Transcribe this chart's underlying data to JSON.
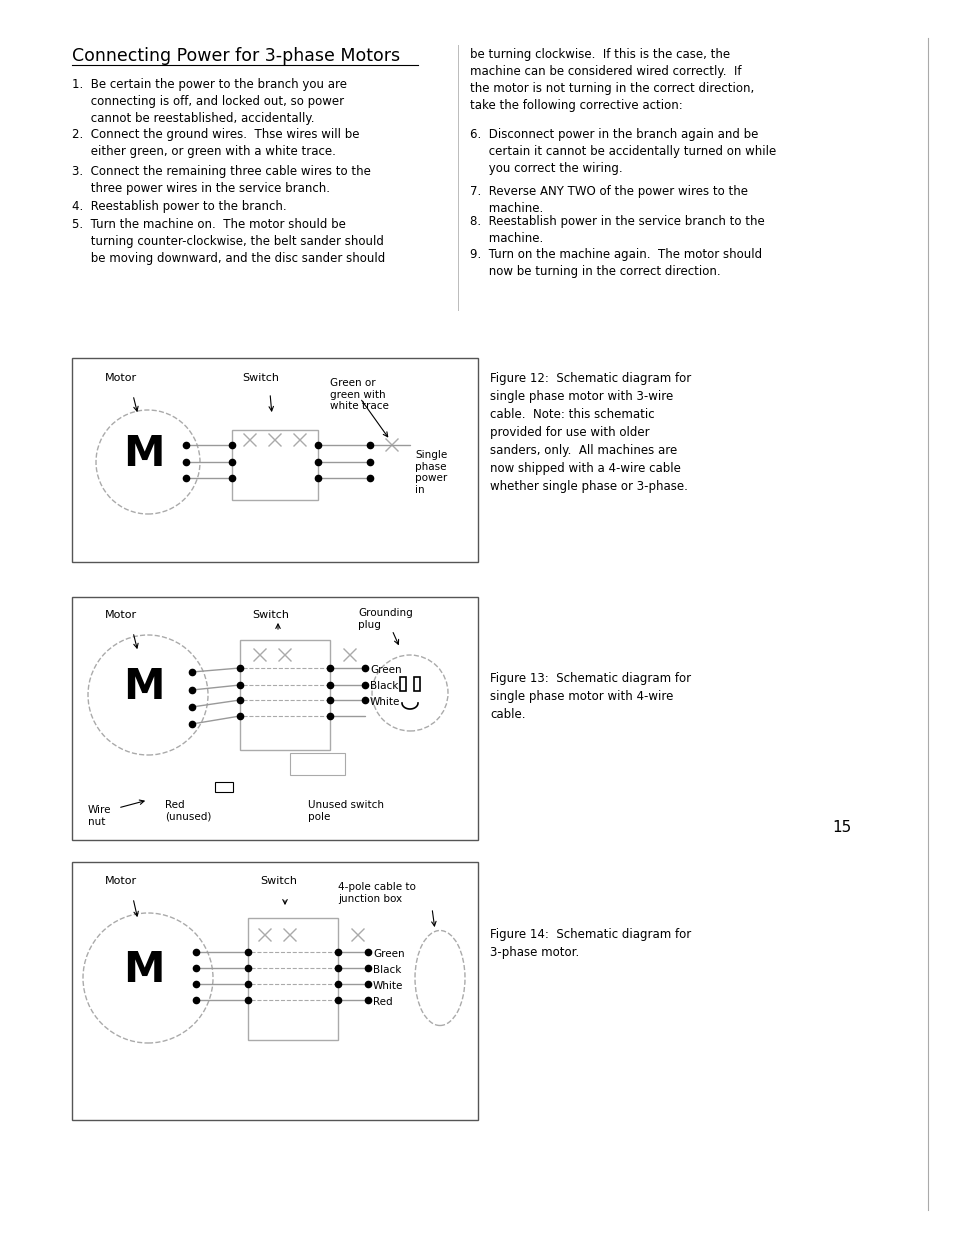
{
  "title": "Connecting Power for 3-phase Motors",
  "bg_color": "#ffffff",
  "page_number": "15",
  "fig12_caption": "Figure 12:  Schematic diagram for\nsingle phase motor with 3-wire\ncable.  Note: this schematic\nprovided for use with older\nsanders, only.  All machines are\nnow shipped with a 4-wire cable\nwhether single phase or 3-phase.",
  "fig13_caption": "Figure 13:  Schematic diagram for\nsingle phase motor with 4-wire\ncable.",
  "fig14_caption": "Figure 14:  Schematic diagram for\n3-phase motor.",
  "left_text": "1.  Be certain the power to the branch you are\n    connecting is off, and locked out, so power\n    cannot be reestablished, accidentally.\n2.  Connect the ground wires.  Thse wires will be\n    either green, or green with a white trace.\n3.  Connect the remaining three cable wires to the\n    three power wires in the service branch.\n4.  Reestablish power to the branch.\n5.  Turn the machine on.  The motor should be\n    turning counter-clockwise, the belt sander should\n    be moving downward, and the disc sander should",
  "right_text": "be turning clockwise.  If this is the case, the\nmachine can be considered wired correctly.  If\nthe motor is not turning in the correct direction,\ntake the following corrective action:\n6.  Disconnect power in the branch again and be\n    certain it cannot be accidentally turned on while\n    you correct the wiring.\n7.  Reverse ANY TWO of the power wires to the\n    machine.\n8.  Reestablish power in the service branch to the\n    machine.\n9.  Turn on the machine again.  The motor should\n    now be turning in the correct direction."
}
